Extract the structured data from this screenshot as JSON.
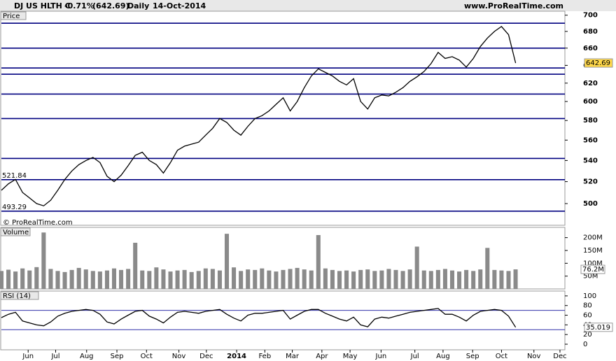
{
  "header": {
    "name": "DJ US HLTH C",
    "change": "-0.71%",
    "last": "(642.69)",
    "period": "Daily",
    "date": "14-Oct-2014",
    "site": "www.ProRealTime.com",
    "footer": "© ProRealTime.com"
  },
  "chart_data": [
    {
      "type": "line",
      "title": "Price",
      "ylog": true,
      "color": "#000000",
      "level_color": "#000080",
      "values": [
        512,
        518,
        522,
        510,
        505,
        500,
        498,
        503,
        512,
        522,
        530,
        536,
        540,
        543,
        538,
        525,
        520,
        526,
        535,
        545,
        548,
        540,
        536,
        528,
        538,
        550,
        554,
        556,
        558,
        565,
        572,
        582,
        578,
        570,
        565,
        574,
        582,
        585,
        590,
        597,
        604,
        590,
        600,
        615,
        628,
        636,
        632,
        628,
        622,
        618,
        625,
        600,
        592,
        604,
        607,
        606,
        610,
        615,
        622,
        627,
        633,
        642,
        655,
        648,
        650,
        646,
        638,
        648,
        662,
        672,
        680,
        686,
        676,
        642.69
      ],
      "levels": [
        690,
        660,
        637,
        630,
        608,
        582,
        542,
        521.84,
        493.29
      ],
      "xlim": [
        0,
        80
      ],
      "ylim": [
        481,
        705
      ],
      "yticks": [
        500,
        520,
        540,
        560,
        580,
        600,
        620,
        640,
        660,
        680,
        700
      ]
    },
    {
      "type": "bar",
      "title": "Volume",
      "color": "#8a8a8a",
      "values": [
        70,
        75,
        68,
        80,
        72,
        85,
        220,
        78,
        70,
        66,
        74,
        82,
        76,
        70,
        68,
        72,
        80,
        74,
        78,
        180,
        72,
        70,
        84,
        76,
        68,
        72,
        74,
        66,
        70,
        80,
        78,
        72,
        215,
        84,
        70,
        76,
        74,
        80,
        72,
        68,
        74,
        78,
        82,
        76,
        72,
        210,
        80,
        74,
        70,
        72,
        68,
        74,
        76,
        70,
        72,
        78,
        74,
        70,
        76,
        165,
        72,
        70,
        74,
        78,
        72,
        68,
        74,
        70,
        76,
        160,
        74,
        72,
        70,
        76.2
      ],
      "value_labels": {
        "73": "76.2M"
      },
      "xlim": [
        0,
        80
      ],
      "ylim": [
        0,
        240
      ],
      "yticks": [
        {
          "value": 50,
          "label": "50M"
        },
        {
          "value": 100,
          "label": "100M"
        },
        {
          "value": 150,
          "label": "150M"
        },
        {
          "value": 200,
          "label": "200M"
        }
      ]
    },
    {
      "type": "line",
      "title": "RSI (14)",
      "color": "#000000",
      "level_color": "#3333aa",
      "values": [
        55,
        62,
        66,
        48,
        44,
        40,
        38,
        46,
        58,
        64,
        68,
        70,
        72,
        70,
        62,
        46,
        42,
        52,
        60,
        68,
        70,
        58,
        52,
        44,
        56,
        66,
        68,
        66,
        64,
        68,
        70,
        72,
        62,
        54,
        48,
        60,
        64,
        64,
        66,
        68,
        70,
        52,
        60,
        68,
        72,
        72,
        64,
        58,
        52,
        48,
        56,
        40,
        36,
        52,
        56,
        54,
        58,
        62,
        66,
        68,
        70,
        72,
        74,
        62,
        62,
        56,
        48,
        60,
        68,
        70,
        72,
        70,
        58,
        35.019
      ],
      "levels": [
        30,
        70
      ],
      "xlim": [
        0,
        80
      ],
      "ylim": [
        -11.6,
        110
      ],
      "yticks": [
        0,
        20,
        40,
        60,
        80,
        100
      ],
      "xticks": [
        {
          "value": 3.8,
          "label": "Jun"
        },
        {
          "value": 7.7,
          "label": "Jul"
        },
        {
          "value": 12.1,
          "label": "Aug"
        },
        {
          "value": 16.4,
          "label": "Sep"
        },
        {
          "value": 20.6,
          "label": "Oct"
        },
        {
          "value": 25.2,
          "label": "Nov"
        },
        {
          "value": 29.1,
          "label": "Dec"
        },
        {
          "value": 33.4,
          "label": "2014"
        },
        {
          "value": 37.4,
          "label": "Feb"
        },
        {
          "value": 41.3,
          "label": "Mar"
        },
        {
          "value": 45.5,
          "label": "Apr"
        },
        {
          "value": 49.5,
          "label": "May"
        },
        {
          "value": 53.9,
          "label": "Jun"
        },
        {
          "value": 58.7,
          "label": "Jul"
        },
        {
          "value": 62.7,
          "label": "Aug"
        },
        {
          "value": 66.9,
          "label": "Sep"
        },
        {
          "value": 71,
          "label": "Oct"
        },
        {
          "value": 75.6,
          "label": "Nov"
        },
        {
          "value": 79.3,
          "label": "Dec"
        }
      ]
    }
  ]
}
